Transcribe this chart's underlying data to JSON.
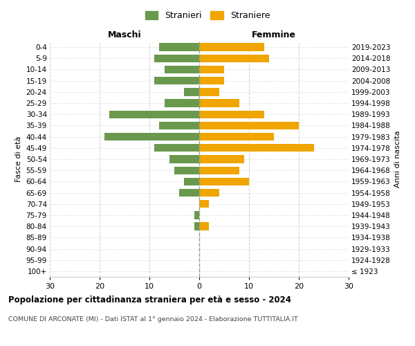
{
  "age_groups": [
    "100+",
    "95-99",
    "90-94",
    "85-89",
    "80-84",
    "75-79",
    "70-74",
    "65-69",
    "60-64",
    "55-59",
    "50-54",
    "45-49",
    "40-44",
    "35-39",
    "30-34",
    "25-29",
    "20-24",
    "15-19",
    "10-14",
    "5-9",
    "0-4"
  ],
  "birth_years": [
    "≤ 1923",
    "1924-1928",
    "1929-1933",
    "1934-1938",
    "1939-1943",
    "1944-1948",
    "1949-1953",
    "1954-1958",
    "1959-1963",
    "1964-1968",
    "1969-1973",
    "1974-1978",
    "1979-1983",
    "1984-1988",
    "1989-1993",
    "1994-1998",
    "1999-2003",
    "2004-2008",
    "2009-2013",
    "2014-2018",
    "2019-2023"
  ],
  "males": [
    0,
    0,
    0,
    0,
    1,
    1,
    0,
    4,
    3,
    5,
    6,
    9,
    19,
    8,
    18,
    7,
    3,
    9,
    7,
    9,
    8
  ],
  "females": [
    0,
    0,
    0,
    0,
    2,
    0,
    2,
    4,
    10,
    8,
    9,
    23,
    15,
    20,
    13,
    8,
    4,
    5,
    5,
    14,
    13
  ],
  "male_color": "#6a994e",
  "female_color": "#f0a500",
  "male_label": "Stranieri",
  "female_label": "Straniere",
  "title": "Popolazione per cittadinanza straniera per età e sesso - 2024",
  "subtitle": "COMUNE DI ARCONATE (MI) - Dati ISTAT al 1° gennaio 2024 - Elaborazione TUTTITALIA.IT",
  "xlabel_left": "Maschi",
  "xlabel_right": "Femmine",
  "ylabel_left": "Fasce di età",
  "ylabel_right": "Anni di nascita",
  "xlim": 30,
  "background_color": "#ffffff",
  "grid_color": "#cccccc"
}
